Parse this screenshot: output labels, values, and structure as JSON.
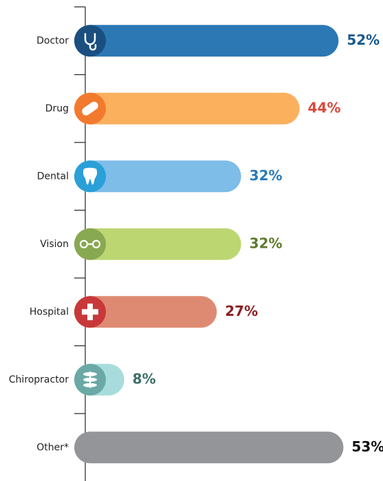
{
  "chart_data": {
    "type": "hbar",
    "categories": [
      "Doctor",
      "Drug",
      "Dental",
      "Vision",
      "Hospital",
      "Chiropractor",
      "Other*"
    ],
    "values": [
      52,
      44,
      32,
      32,
      27,
      8,
      53
    ],
    "value_labels": [
      "52%",
      "44%",
      "32%",
      "32%",
      "27%",
      "8%",
      "53%"
    ],
    "colors": [
      "#2b78b5",
      "#fbb05e",
      "#7dbde8",
      "#bcd672",
      "#de8a72",
      "#a8dcdc",
      "#939598"
    ],
    "label_colors": [
      "#1a5a8f",
      "#d9493a",
      "#2a7ab8",
      "#5e7a2e",
      "#8b1e22",
      "#3d6e68",
      "#111111"
    ],
    "icon_colors": [
      "#1a4f80",
      "#f27a2e",
      "#2a9fd8",
      "#88a852",
      "#c8383a",
      "#6aa9a5",
      null
    ],
    "xlim": [
      0,
      60
    ]
  }
}
